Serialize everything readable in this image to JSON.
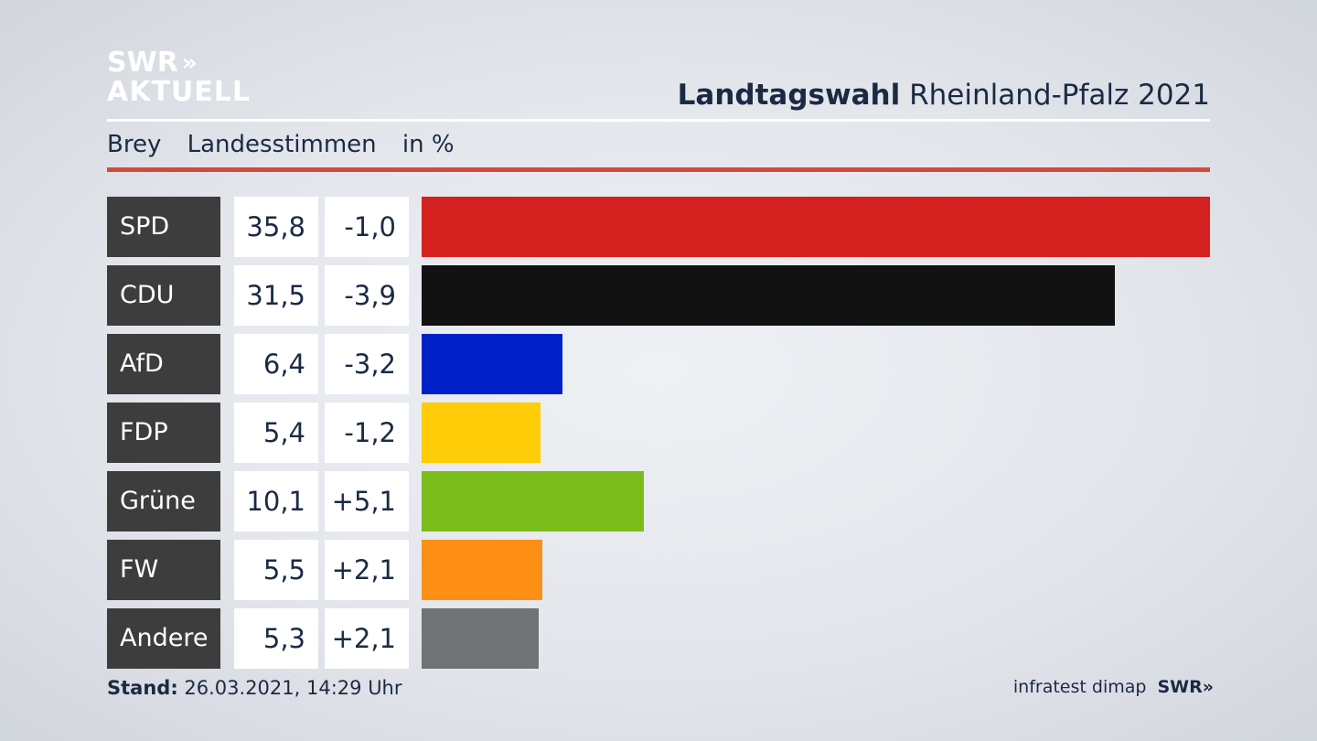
{
  "logo": {
    "line1": "SWR",
    "chevrons": "»",
    "line2": "AKTUELL"
  },
  "header": {
    "title_bold": "Landtagswahl",
    "title_rest": "Rheinland-Pfalz 2021"
  },
  "subtitle": {
    "place": "Brey",
    "type": "Landesstimmen",
    "unit": "in %"
  },
  "colors": {
    "accent_rule": "#d34a3d",
    "party_box": "#3d3d3d"
  },
  "chart_data": {
    "type": "bar",
    "categories": [
      "SPD",
      "CDU",
      "AfD",
      "FDP",
      "Grüne",
      "FW",
      "Andere"
    ],
    "values": [
      35.8,
      31.5,
      6.4,
      5.4,
      10.1,
      5.5,
      5.3
    ],
    "value_labels": [
      "35,8",
      "31,5",
      "6,4",
      "5,4",
      "10,1",
      "5,5",
      "5,3"
    ],
    "changes": [
      -1.0,
      -3.9,
      -3.2,
      -1.2,
      5.1,
      2.1,
      2.1
    ],
    "change_labels": [
      "-1,0",
      "-3,9",
      "-3,2",
      "-1,2",
      "+5,1",
      "+2,1",
      "+2,1"
    ],
    "colors": [
      "#d52020",
      "#121212",
      "#0021c8",
      "#fecd07",
      "#7abd1b",
      "#fd8e16",
      "#717273"
    ],
    "orientation": "horizontal",
    "title": "",
    "xlabel": "",
    "ylabel": ""
  },
  "footer": {
    "stand_label": "Stand:",
    "stand_value": "26.03.2021, 14:29 Uhr",
    "source": "infratest dimap",
    "brand": "SWR",
    "brand_chevrons": "»"
  }
}
